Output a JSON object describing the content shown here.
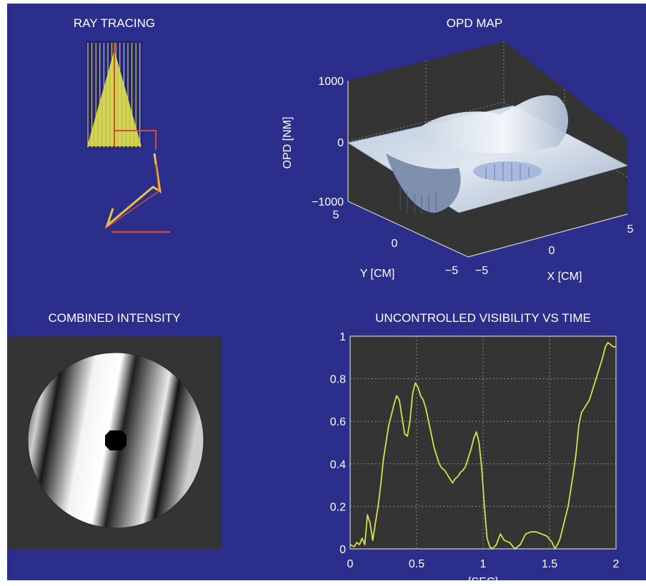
{
  "figure": {
    "background": "#2b2e8a",
    "panel_dark": "#343434",
    "text_color": "#ffffff"
  },
  "panels": {
    "ray_tracing": {
      "title": "RAY TRACING"
    },
    "opd_map": {
      "title": "OPD MAP",
      "zlabel": "OPD [NM]",
      "ylabel": "Y [CM]",
      "xlabel": "X [CM]",
      "z_ticks": [
        "1000",
        "0",
        "−1000"
      ],
      "y_ticks": [
        "5",
        "0",
        "−5"
      ],
      "x_ticks": [
        "−5",
        "0",
        "5"
      ]
    },
    "combined_intensity": {
      "title": "COMBINED INTENSITY"
    },
    "visibility": {
      "title": "UNCONTROLLED VISIBILITY VS TIME",
      "xlabel": "[SEC]"
    }
  },
  "chart_data": [
    {
      "type": "scatter",
      "title": "RAY TRACING",
      "note_kind": "optical ray trace schematic"
    },
    {
      "type": "heatmap",
      "title": "OPD MAP",
      "xlabel": "X [CM]",
      "ylabel": "Y [CM]",
      "zlabel": "OPD [NM]",
      "xlim": [
        -5,
        5
      ],
      "ylim": [
        -5,
        5
      ],
      "zlim": [
        -1000,
        1000
      ],
      "z_tick_values": [
        1000,
        0,
        -1000
      ],
      "x_tick_values": [
        -5,
        0,
        5
      ],
      "y_tick_values": [
        5,
        0,
        -5
      ]
    },
    {
      "type": "heatmap",
      "title": "COMBINED INTENSITY"
    },
    {
      "type": "line",
      "title": "UNCONTROLLED VISIBILITY VS TIME",
      "xlabel": "[SEC]",
      "ylabel": "",
      "xlim": [
        0,
        2
      ],
      "ylim": [
        0,
        1
      ],
      "x_ticks": [
        0,
        0.5,
        1,
        1.5,
        2
      ],
      "y_ticks": [
        0,
        0.2,
        0.4,
        0.6,
        0.8,
        1
      ],
      "x_tick_labels": [
        "0",
        "0.5",
        "1",
        "1.5",
        "2"
      ],
      "y_tick_labels": [
        "0",
        "0.2",
        "0.4",
        "0.6",
        "0.8",
        "1"
      ],
      "grid": true,
      "line_color": "#d8e04a",
      "x": [
        0,
        0.03,
        0.05,
        0.07,
        0.09,
        0.11,
        0.13,
        0.15,
        0.17,
        0.19,
        0.21,
        0.23,
        0.25,
        0.27,
        0.29,
        0.31,
        0.33,
        0.35,
        0.37,
        0.39,
        0.41,
        0.43,
        0.45,
        0.47,
        0.49,
        0.51,
        0.53,
        0.55,
        0.57,
        0.59,
        0.61,
        0.63,
        0.65,
        0.67,
        0.69,
        0.71,
        0.73,
        0.75,
        0.77,
        0.79,
        0.81,
        0.83,
        0.85,
        0.87,
        0.89,
        0.91,
        0.93,
        0.95,
        0.97,
        0.99,
        1.01,
        1.03,
        1.05,
        1.07,
        1.1,
        1.13,
        1.16,
        1.2,
        1.24,
        1.28,
        1.32,
        1.36,
        1.4,
        1.44,
        1.48,
        1.52,
        1.54,
        1.56,
        1.58,
        1.6,
        1.62,
        1.64,
        1.66,
        1.68,
        1.7,
        1.72,
        1.74,
        1.76,
        1.78,
        1.8,
        1.82,
        1.84,
        1.86,
        1.88,
        1.9,
        1.92,
        1.94,
        1.96,
        1.98,
        2.0
      ],
      "y": [
        0.02,
        0.01,
        0.03,
        0.02,
        0.05,
        0.02,
        0.16,
        0.12,
        0.04,
        0.12,
        0.2,
        0.3,
        0.42,
        0.5,
        0.58,
        0.63,
        0.68,
        0.72,
        0.7,
        0.62,
        0.54,
        0.53,
        0.6,
        0.73,
        0.78,
        0.76,
        0.72,
        0.7,
        0.66,
        0.6,
        0.54,
        0.48,
        0.44,
        0.4,
        0.38,
        0.37,
        0.35,
        0.33,
        0.31,
        0.33,
        0.34,
        0.36,
        0.37,
        0.39,
        0.43,
        0.47,
        0.52,
        0.55,
        0.5,
        0.38,
        0.2,
        0.05,
        0.01,
        0.0,
        0.02,
        0.07,
        0.04,
        0.03,
        0.0,
        0.02,
        0.07,
        0.08,
        0.08,
        0.07,
        0.06,
        0.03,
        0.0,
        0.02,
        0.05,
        0.1,
        0.15,
        0.2,
        0.28,
        0.36,
        0.45,
        0.58,
        0.64,
        0.66,
        0.68,
        0.7,
        0.74,
        0.78,
        0.82,
        0.86,
        0.9,
        0.95,
        0.97,
        0.96,
        0.95,
        0.95
      ]
    }
  ]
}
